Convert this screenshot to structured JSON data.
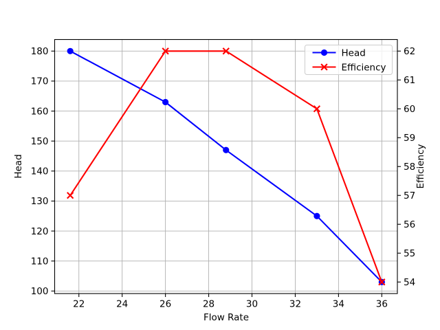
{
  "chart_data": {
    "type": "line",
    "title": "",
    "xlabel": "Flow Rate",
    "ylabel_left": "Head",
    "ylabel_right": "Efficiency",
    "x": [
      21.6,
      26.0,
      28.8,
      33.0,
      36.0
    ],
    "series": [
      {
        "name": "Head",
        "axis": "left",
        "color": "#0000ff",
        "marker": "circle",
        "values": [
          180,
          163,
          147,
          125,
          103
        ]
      },
      {
        "name": "Efficiency",
        "axis": "right",
        "color": "#ff0000",
        "marker": "x",
        "values": [
          57,
          62,
          62,
          60,
          54
        ]
      }
    ],
    "x_ticks": [
      22,
      24,
      26,
      28,
      30,
      32,
      34,
      36
    ],
    "y_ticks_left": [
      100,
      110,
      120,
      130,
      140,
      150,
      160,
      170,
      180
    ],
    "y_ticks_right": [
      54,
      55,
      56,
      57,
      58,
      59,
      60,
      61,
      62
    ],
    "xlim": [
      20.88,
      36.72
    ],
    "ylim_left": [
      99.15,
      183.85
    ],
    "ylim_right": [
      53.6,
      62.4
    ],
    "grid": true,
    "grid_color": "#b0b0b0",
    "axis_color": "#000000",
    "background_color": "#ffffff",
    "legend_position": "upper right",
    "legend_border_color": "#cccccc"
  }
}
